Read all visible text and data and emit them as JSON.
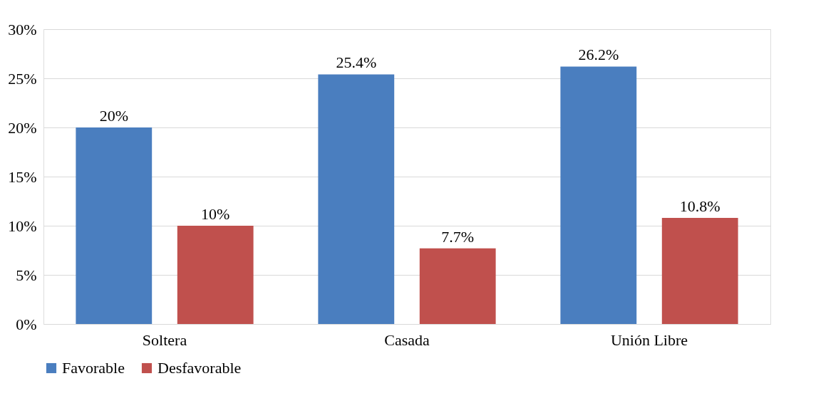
{
  "chart_data": {
    "type": "bar",
    "categories": [
      "Soltera",
      "Casada",
      "Unión Libre"
    ],
    "series": [
      {
        "name": "Favorable",
        "color": "#4a7ebf",
        "values": [
          20,
          25.4,
          26.2
        ],
        "value_labels": [
          "20%",
          "25.4%",
          "26.2%"
        ]
      },
      {
        "name": "Desfavorable",
        "color": "#c0504d",
        "values": [
          10,
          7.7,
          10.8
        ],
        "value_labels": [
          "10%",
          "7.7%",
          "10.8%"
        ]
      }
    ],
    "ylim": [
      0,
      30
    ],
    "yticks": [
      {
        "value": 0,
        "label": "0%"
      },
      {
        "value": 5,
        "label": "5%"
      },
      {
        "value": 10,
        "label": "10%"
      },
      {
        "value": 15,
        "label": "15%"
      },
      {
        "value": 20,
        "label": "20%"
      },
      {
        "value": 25,
        "label": "25%"
      },
      {
        "value": 30,
        "label": "30%"
      }
    ],
    "grid": "y",
    "legend": "bottom"
  }
}
